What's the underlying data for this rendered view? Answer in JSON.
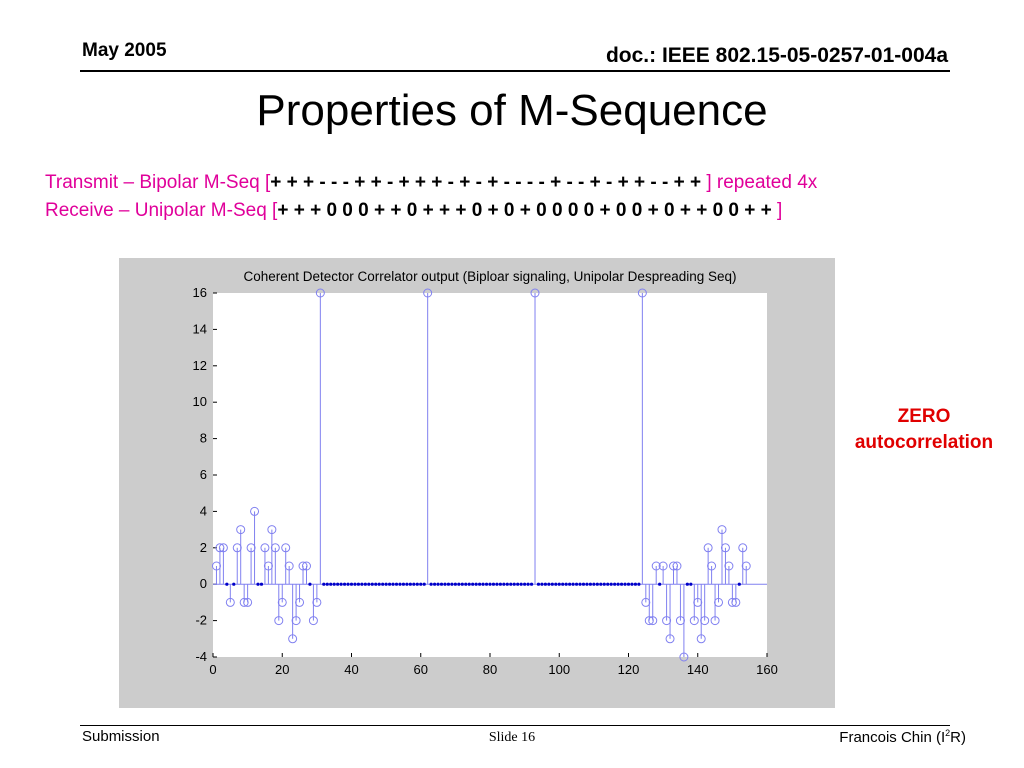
{
  "header": {
    "date": "May 2005",
    "doc_id": "doc.: IEEE 802.15-05-0257-01-004a"
  },
  "slide_title": "Properties of M-Sequence",
  "lines": {
    "transmit_prefix": "Transmit – Bipolar M-Seq [",
    "transmit_seq": "+ + + - - - + + - + + + - + - + - - - - + - - + - + + - - + +",
    "transmit_suffix": " ] repeated 4x",
    "receive_prefix": "Receive – Unipolar M-Seq [",
    "receive_seq": "+ + + 0 0 0 + + 0 + + + 0 + 0 + 0 0 0 0 + 0 0 + 0 + + 0 0 + +",
    "receive_suffix": " ]"
  },
  "annotation": {
    "line1": "ZERO",
    "line2": "autocorrelation"
  },
  "footer": {
    "left": "Submission",
    "center": "Slide 16",
    "right_main": "Francois Chin (I",
    "right_sup": "2",
    "right_end": "R)"
  },
  "colors": {
    "panel_bg": "#cccccc",
    "stem": "#8080f0",
    "marker": "#0000c8",
    "accent": "#e0009a",
    "annotation": "#e00000"
  },
  "chart_data": {
    "type": "stem",
    "title": "Coherent Detector Correlator output (Biploar signaling, Unipolar Despreading Seq)",
    "xlabel": "",
    "ylabel": "",
    "xlim": [
      0,
      160
    ],
    "ylim": [
      -4,
      16
    ],
    "xticks": [
      0,
      20,
      40,
      60,
      80,
      100,
      120,
      140,
      160
    ],
    "yticks": [
      -4,
      -2,
      0,
      2,
      4,
      6,
      8,
      10,
      12,
      14,
      16
    ],
    "grid": false,
    "series": [
      {
        "x_start": 1,
        "values": [
          1,
          2,
          2,
          0,
          -1,
          0,
          2,
          3,
          -1,
          -1,
          2,
          4,
          0,
          0,
          2,
          1,
          3,
          2,
          -2,
          -1,
          2,
          1,
          -3,
          -2,
          -1,
          1,
          1,
          0,
          -2,
          -1,
          16,
          0,
          0,
          0,
          0,
          0,
          0,
          0,
          0,
          0,
          0,
          0,
          0,
          0,
          0,
          0,
          0,
          0,
          0,
          0,
          0,
          0,
          0,
          0,
          0,
          0,
          0,
          0,
          0,
          0,
          0,
          16,
          0,
          0,
          0,
          0,
          0,
          0,
          0,
          0,
          0,
          0,
          0,
          0,
          0,
          0,
          0,
          0,
          0,
          0,
          0,
          0,
          0,
          0,
          0,
          0,
          0,
          0,
          0,
          0,
          0,
          0,
          16,
          0,
          0,
          0,
          0,
          0,
          0,
          0,
          0,
          0,
          0,
          0,
          0,
          0,
          0,
          0,
          0,
          0,
          0,
          0,
          0,
          0,
          0,
          0,
          0,
          0,
          0,
          0,
          0,
          0,
          0,
          16,
          -1,
          -2,
          -2,
          1,
          0,
          1,
          -2,
          -3,
          1,
          1,
          -2,
          -4,
          0,
          0,
          -2,
          -1,
          -3,
          -2,
          2,
          1,
          -2,
          -1,
          3,
          2,
          1,
          -1,
          -1,
          0,
          2,
          1
        ]
      }
    ]
  }
}
